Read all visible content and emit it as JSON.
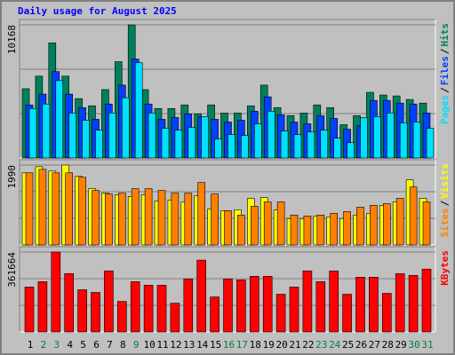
{
  "chart_data": [
    {
      "type": "bar",
      "title": "Daily usage for August 2025",
      "categories": [
        "1",
        "2",
        "3",
        "4",
        "5",
        "6",
        "7",
        "8",
        "9",
        "10",
        "11",
        "12",
        "13",
        "14",
        "15",
        "16",
        "17",
        "18",
        "19",
        "20",
        "21",
        "22",
        "23",
        "24",
        "25",
        "26",
        "27",
        "28",
        "29",
        "30",
        "31"
      ],
      "category_colors": [
        "#000000",
        "#008040",
        "#008040",
        "#000000",
        "#000000",
        "#000000",
        "#000000",
        "#000000",
        "#008040",
        "#000000",
        "#000000",
        "#000000",
        "#000000",
        "#000000",
        "#000000",
        "#008040",
        "#008040",
        "#000000",
        "#000000",
        "#000000",
        "#000000",
        "#000000",
        "#008040",
        "#008040",
        "#000000",
        "#000000",
        "#000000",
        "#000000",
        "#000000",
        "#008040",
        "#008040"
      ],
      "legend_separator": "/",
      "ylim": [
        0,
        10168
      ],
      "yticks": [
        10168
      ],
      "gridlines": [
        3389,
        6779
      ],
      "series": [
        {
          "name": "Hits",
          "color": "#00805c",
          "values": [
            5290,
            6252,
            8794,
            6252,
            4534,
            3985,
            5221,
            7351,
            10168,
            5221,
            3779,
            3779,
            4053,
            3366,
            4053,
            3435,
            3435,
            3985,
            5565,
            3847,
            3229,
            3435,
            4053,
            3847,
            2542,
            3229,
            5015,
            4809,
            4740,
            4466,
            4191
          ]
        },
        {
          "name": "Files",
          "color": "#0040ff",
          "values": [
            4053,
            4878,
            6595,
            4878,
            3847,
            2954,
            4122,
            5565,
            7557,
            4122,
            2954,
            3092,
            3366,
            3160,
            2954,
            2748,
            2885,
            3572,
            4672,
            3298,
            2748,
            2611,
            3229,
            3023,
            2198,
            2473,
            4397,
            4397,
            4191,
            4122,
            3435
          ]
        },
        {
          "name": "Pages",
          "color": "#00e0ff",
          "values": [
            3779,
            4122,
            5908,
            3435,
            2885,
            2130,
            3435,
            4603,
            7282,
            3435,
            2267,
            2130,
            2336,
            3160,
            1443,
            1786,
            1718,
            2611,
            3572,
            2061,
            1786,
            1992,
            2130,
            1511,
            1168,
            3092,
            3160,
            3435,
            2679,
            2748,
            2267
          ]
        }
      ]
    },
    {
      "type": "bar",
      "legend_separator": "/",
      "ylim": [
        0,
        1990
      ],
      "yticks": [
        1990
      ],
      "gridlines": [
        663,
        1327
      ],
      "series": [
        {
          "name": "Visits",
          "color": "#ffff00",
          "values": [
            1796,
            1949,
            1840,
            1990,
            1708,
            1402,
            1292,
            1248,
            1205,
            1248,
            1095,
            1117,
            1073,
            1226,
            898,
            854,
            876,
            1161,
            1183,
            876,
            657,
            657,
            723,
            701,
            657,
            745,
            788,
            986,
            1073,
            1621,
            1161
          ]
        },
        {
          "name": "Sites",
          "color": "#ff8000",
          "values": [
            1796,
            1883,
            1796,
            1796,
            1686,
            1358,
            1270,
            1292,
            1402,
            1402,
            1358,
            1292,
            1292,
            1555,
            1270,
            854,
            745,
            964,
            1073,
            1073,
            745,
            723,
            745,
            788,
            832,
            942,
            986,
            1029,
            1161,
            1445,
            1073
          ]
        }
      ]
    },
    {
      "type": "bar",
      "ylim": [
        0,
        361664
      ],
      "yticks": [
        361664
      ],
      "gridlines": [
        120555,
        241109
      ],
      "series": [
        {
          "name": "KBytes",
          "color": "#ff0000",
          "values": [
            203200,
            227584,
            361664,
            264160,
            191008,
            178816,
            276352,
            138176,
            227584,
            211328,
            211328,
            130048,
            239776,
            325120,
            158496,
            239776,
            235712,
            251968,
            251968,
            170688,
            203200,
            276352,
            227584,
            276352,
            170688,
            247904,
            247904,
            174752,
            264160,
            256032,
            284480
          ]
        }
      ]
    }
  ]
}
